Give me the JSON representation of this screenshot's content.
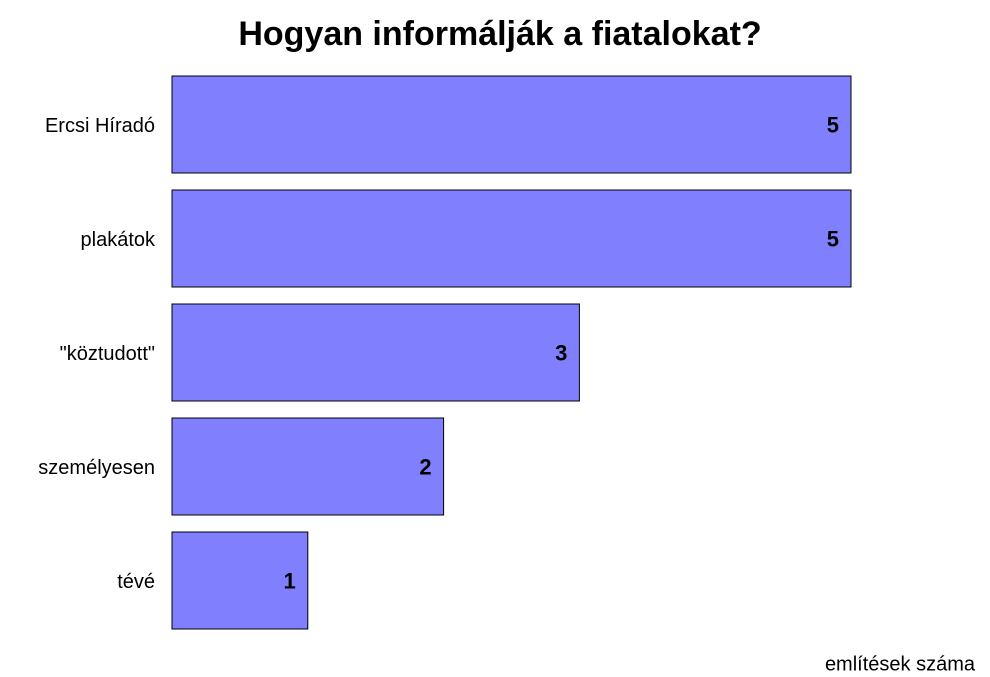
{
  "chart_data": {
    "type": "bar",
    "orientation": "horizontal",
    "title": "Hogyan informálják a fiatalokat?",
    "x_label": "említések száma",
    "categories": [
      "Ercsi Híradó",
      "plakátok",
      "\"köztudott\"",
      "személyesen",
      "tévé"
    ],
    "values": [
      5,
      5,
      3,
      2,
      1
    ],
    "color": "#8080ff",
    "xlim": [
      0,
      5
    ]
  }
}
